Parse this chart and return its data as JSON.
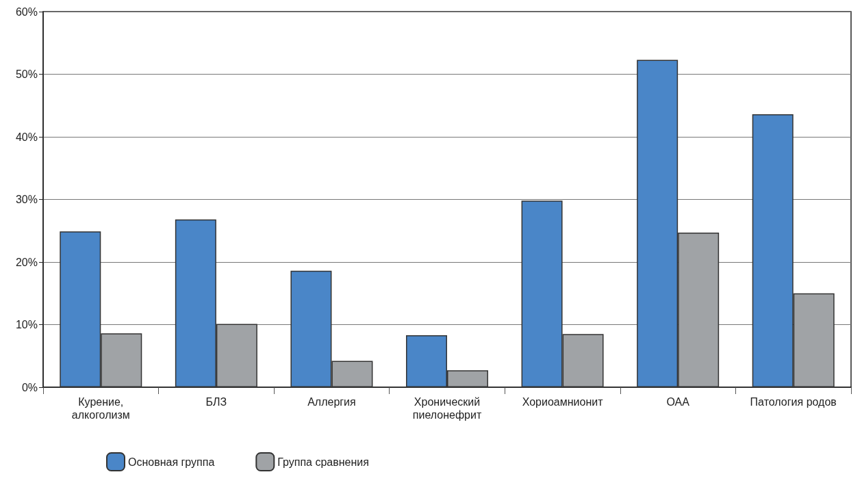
{
  "chart_data": {
    "type": "bar",
    "categories": [
      "Курение, алкоголизм",
      "БЛЗ",
      "Аллергия",
      "Хронический пиелонефрит",
      "Хориоамнионит",
      "ОАА",
      "Патология родов"
    ],
    "series": [
      {
        "name": "Основная группа",
        "color": "#4a86c8",
        "values": [
          24.9,
          26.8,
          18.6,
          8.3,
          29.8,
          52.3,
          43.6
        ]
      },
      {
        "name": "Группа сравнения",
        "color": "#a0a3a6",
        "values": [
          8.6,
          10.1,
          4.2,
          2.7,
          8.5,
          24.7,
          15.0
        ]
      }
    ],
    "ylim": [
      0,
      60
    ],
    "yticks": [
      {
        "value": 0,
        "label": "0%"
      },
      {
        "value": 10,
        "label": "10%"
      },
      {
        "value": 20,
        "label": "20%"
      },
      {
        "value": 30,
        "label": "30%"
      },
      {
        "value": 40,
        "label": "40%"
      },
      {
        "value": 50,
        "label": "50%"
      },
      {
        "value": 60,
        "label": "60%"
      }
    ],
    "grid": "y",
    "legend": "bottom left"
  }
}
